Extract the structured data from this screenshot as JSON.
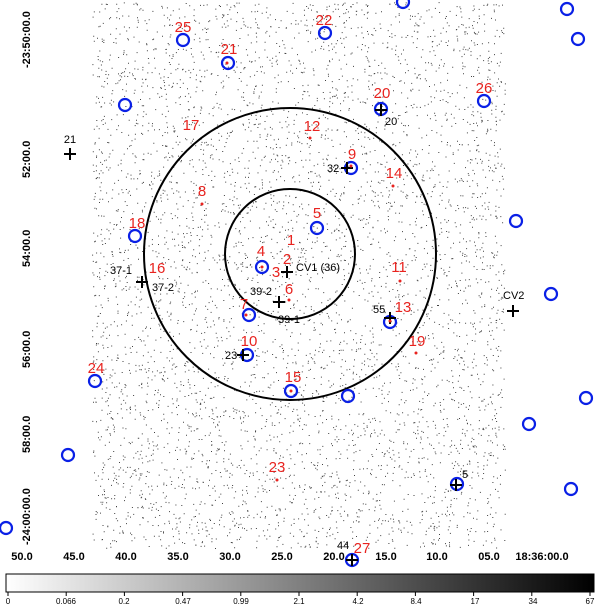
{
  "y_ticks": [
    {
      "label": "-23:50:00.0"
    },
    {
      "label": "52:00.0"
    },
    {
      "label": "54:00.0"
    },
    {
      "label": "56:00.0"
    },
    {
      "label": "58:00.0"
    },
    {
      "label": "-24:00:00.0"
    }
  ],
  "x_ticks": [
    "50.0",
    "45.0",
    "40.0",
    "35.0",
    "30.0",
    "25.0",
    "20.0",
    "15.0",
    "10.0",
    "05.0",
    "18:36:00.0"
  ],
  "colorbar_ticks": [
    "0",
    "0.066",
    "0.2",
    "0.47",
    "0.99",
    "2.1",
    "4.2",
    "8.4",
    "17",
    "34",
    "67"
  ],
  "red_labels": [
    "1",
    "2",
    "3",
    "4",
    "5",
    "6",
    "7",
    "8",
    "9",
    "10",
    "11",
    "12",
    "13",
    "14",
    "15",
    "16",
    "17",
    "18",
    "19",
    "20",
    "21",
    "22",
    "23",
    "24",
    "25",
    "26",
    "27"
  ],
  "black_labels": [
    "21",
    "20",
    "32",
    "CV1 (36)",
    "37-1",
    "37-2",
    "39-2",
    "39-1",
    "55",
    "CV2",
    "23",
    "5",
    "44"
  ],
  "colors": {
    "red": "#e8231f",
    "blue": "#0a20e6",
    "black": "#000000",
    "background": "#ffffff"
  }
}
